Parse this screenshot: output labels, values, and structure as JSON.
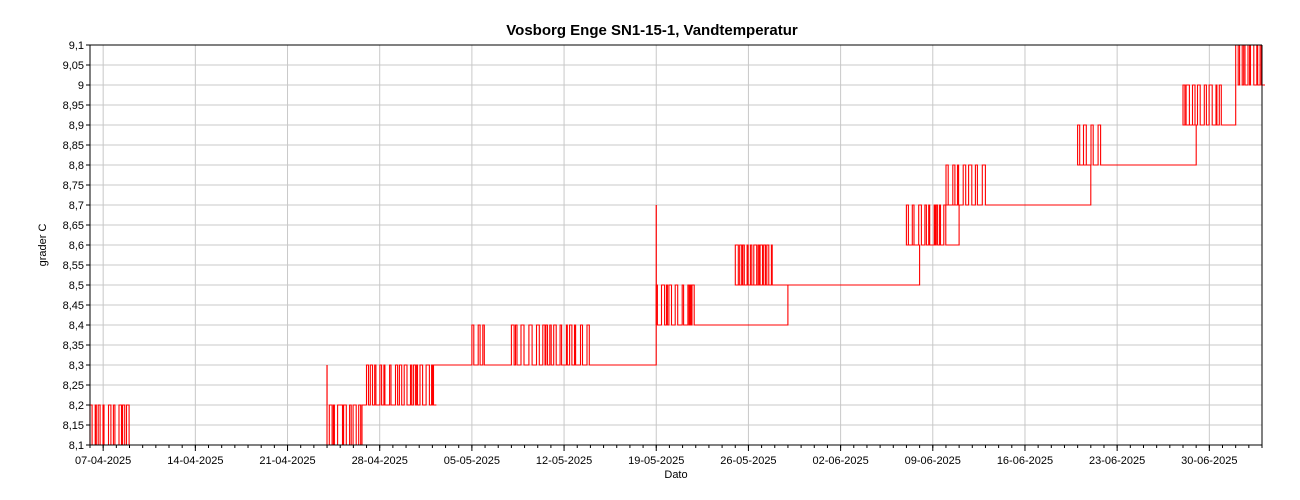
{
  "chart_data": {
    "type": "line",
    "title": "Vosborg Enge SN1-15-1, Vandtemperatur",
    "xlabel": "Dato",
    "ylabel": "grader C",
    "x_tick_labels": [
      "07-04-2025",
      "14-04-2025",
      "21-04-2025",
      "28-04-2025",
      "05-05-2025",
      "12-05-2025",
      "19-05-2025",
      "26-05-2025",
      "02-06-2025",
      "09-06-2025",
      "16-06-2025",
      "23-06-2025",
      "30-06-2025"
    ],
    "y_tick_labels": [
      "8,1",
      "8,15",
      "8,2",
      "8,25",
      "8,3",
      "8,35",
      "8,4",
      "8,45",
      "8,5",
      "8,55",
      "8,6",
      "8,65",
      "8,7",
      "8,75",
      "8,8",
      "8,85",
      "8,9",
      "8,95",
      "9",
      "9,05",
      "9,1"
    ],
    "x_range": [
      "2025-04-06",
      "2025-07-04"
    ],
    "ylim": [
      8.1,
      9.1
    ],
    "grid": true,
    "series_color": "#ff0000",
    "series": [
      {
        "steps": [
          {
            "from": "2025-04-06",
            "to": "2025-04-24",
            "base": 8.1,
            "alt": 8.2,
            "flicker": [
              [
                "2025-04-06",
                "2025-04-09"
              ]
            ]
          },
          {
            "from": "2025-04-24",
            "to": "2025-04-27",
            "base": 8.2,
            "alt": 8.1,
            "flicker": [
              [
                "2025-04-24",
                "2025-04-27"
              ]
            ]
          },
          {
            "from": "2025-04-27",
            "to": "2025-05-02",
            "base": 8.2,
            "alt": 8.3,
            "flicker": [
              [
                "2025-04-27",
                "2025-05-02"
              ]
            ]
          },
          {
            "from": "2025-05-02",
            "to": "2025-05-19",
            "base": 8.3,
            "alt": 8.4,
            "flicker": [
              [
                "2025-05-05",
                "2025-05-06"
              ],
              [
                "2025-05-08",
                "2025-05-14"
              ]
            ]
          },
          {
            "from": "2025-05-19",
            "to": "2025-05-29",
            "base": 8.4,
            "alt": 8.5,
            "flicker": [
              [
                "2025-05-19",
                "2025-05-22"
              ]
            ]
          },
          {
            "from": "2025-05-29",
            "to": "2025-06-08",
            "base": 8.5,
            "alt": 8.6,
            "flicker": [
              [
                "2025-05-25",
                "2025-05-28"
              ]
            ]
          },
          {
            "from": "2025-06-08",
            "to": "2025-06-11",
            "base": 8.6,
            "alt": 8.7,
            "flicker": [
              [
                "2025-06-07",
                "2025-06-10"
              ]
            ]
          },
          {
            "from": "2025-06-11",
            "to": "2025-06-21",
            "base": 8.7,
            "alt": 8.8,
            "flicker": [
              [
                "2025-06-10",
                "2025-06-13"
              ]
            ]
          },
          {
            "from": "2025-06-21",
            "to": "2025-06-29",
            "base": 8.8,
            "alt": 8.9,
            "flicker": [
              [
                "2025-06-20",
                "2025-06-22"
              ]
            ]
          },
          {
            "from": "2025-06-29",
            "to": "2025-07-02",
            "base": 8.9,
            "alt": 9.0,
            "flicker": [
              [
                "2025-06-28",
                "2025-07-01"
              ]
            ]
          },
          {
            "from": "2025-07-02",
            "to": "2025-07-04",
            "base": 9.0,
            "alt": 9.1,
            "flicker": [
              [
                "2025-07-02",
                "2025-07-04"
              ]
            ]
          }
        ],
        "spikes": [
          {
            "date": "2025-05-19",
            "value": 8.7
          },
          {
            "date": "2025-04-24",
            "value": 8.3
          }
        ]
      }
    ]
  }
}
